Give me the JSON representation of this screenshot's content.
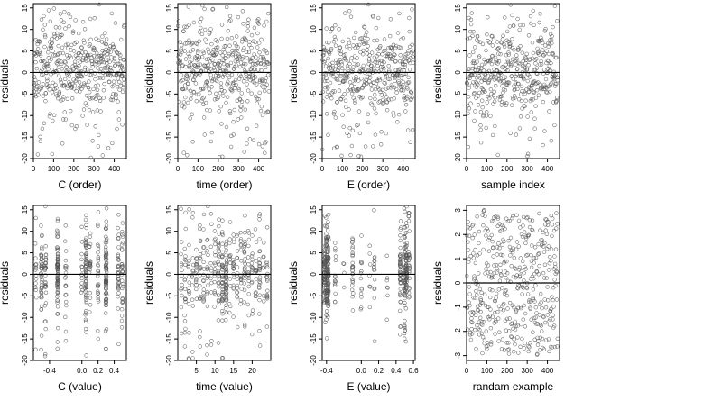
{
  "figure": {
    "background": "#ffffff",
    "point_color": "#555555",
    "reference_line_color": "#000000"
  },
  "chart_data": [
    {
      "type": "scatter",
      "xlabel": "C (order)",
      "ylabel": "residuals",
      "xlim": [
        0,
        460
      ],
      "ylim": [
        -20,
        16
      ],
      "xticks": [
        0,
        100,
        200,
        300,
        400
      ],
      "yticks": [
        -20,
        -15,
        -10,
        -5,
        0,
        5,
        10,
        15
      ],
      "hline": 0,
      "x_kind": "index",
      "spread": "normal",
      "extremes": true,
      "seed": 11,
      "n_points": 450
    },
    {
      "type": "scatter",
      "xlabel": "time (order)",
      "ylabel": "residuals",
      "xlim": [
        0,
        460
      ],
      "ylim": [
        -20,
        16
      ],
      "xticks": [
        0,
        100,
        200,
        300,
        400
      ],
      "yticks": [
        -20,
        -15,
        -10,
        -5,
        0,
        5,
        10,
        15
      ],
      "hline": 0,
      "x_kind": "index",
      "spread": "normal",
      "extremes": true,
      "seed": 23,
      "n_points": 450
    },
    {
      "type": "scatter",
      "xlabel": "E (order)",
      "ylabel": "residuals",
      "xlim": [
        0,
        460
      ],
      "ylim": [
        -20,
        16
      ],
      "xticks": [
        0,
        100,
        200,
        300,
        400
      ],
      "yticks": [
        -20,
        -15,
        -10,
        -5,
        0,
        5,
        10,
        15
      ],
      "hline": 0,
      "x_kind": "index",
      "spread": "normal",
      "extremes": true,
      "seed": 37,
      "n_points": 450
    },
    {
      "type": "scatter",
      "xlabel": "sample index",
      "ylabel": "residuals",
      "xlim": [
        0,
        460
      ],
      "ylim": [
        -20,
        16
      ],
      "xticks": [
        0,
        100,
        200,
        300,
        400
      ],
      "yticks": [
        -20,
        -15,
        -10,
        -5,
        0,
        5,
        10,
        15
      ],
      "hline": 0,
      "x_kind": "index",
      "spread": "normal",
      "extremes": true,
      "seed": 41,
      "n_points": 450
    },
    {
      "type": "scatter",
      "xlabel": "C (value)",
      "ylabel": "residuals",
      "xlim": [
        -0.6,
        0.55
      ],
      "ylim": [
        -20,
        16
      ],
      "xticks": [
        -0.4,
        0.0,
        0.2,
        0.4
      ],
      "xtick_labels": [
        "-0.4",
        "0.0",
        "0.2",
        "0.4"
      ],
      "yticks": [
        -20,
        -15,
        -10,
        -5,
        0,
        5,
        10,
        15
      ],
      "hline": 0,
      "x_kind": "levels",
      "x_levels": [
        -0.57,
        -0.5,
        -0.45,
        -0.3,
        -0.2,
        0.0,
        0.05,
        0.1,
        0.2,
        0.3,
        0.45,
        0.5
      ],
      "level_weights": [
        1,
        2,
        2,
        5,
        1,
        1,
        3,
        1,
        2,
        5,
        3,
        2
      ],
      "spread": "normal",
      "extremes": true,
      "seed": 53,
      "n_points": 450
    },
    {
      "type": "scatter",
      "xlabel": "time (value)",
      "ylabel": "residuals",
      "xlim": [
        0,
        25
      ],
      "ylim": [
        -20,
        16
      ],
      "xticks": [
        5,
        10,
        15,
        20
      ],
      "yticks": [
        -20,
        -15,
        -10,
        -5,
        0,
        5,
        10,
        15
      ],
      "hline": 0,
      "x_kind": "levels",
      "x_levels": [
        1,
        2,
        3,
        4,
        5,
        6,
        7,
        8,
        9,
        10,
        11,
        12,
        13,
        14,
        15,
        16,
        17,
        18,
        19,
        20,
        21,
        22,
        23,
        24
      ],
      "level_weights": [
        1,
        1,
        1,
        1,
        1,
        1,
        1,
        1,
        1,
        1,
        2,
        3,
        2,
        1,
        1,
        1,
        1,
        1,
        1,
        1,
        1,
        1,
        1,
        1
      ],
      "spread": "normal",
      "extremes": true,
      "seed": 67,
      "n_points": 450
    },
    {
      "type": "scatter",
      "xlabel": "E (value)",
      "ylabel": "residuals",
      "xlim": [
        -0.45,
        0.62
      ],
      "ylim": [
        -20,
        16
      ],
      "xticks": [
        -0.4,
        0.0,
        0.2,
        0.4,
        0.6
      ],
      "xtick_labels": [
        "-0.4",
        "0.0",
        "0.2",
        "0.4",
        "0.6"
      ],
      "yticks": [
        -20,
        -15,
        -10,
        -5,
        0,
        5,
        10,
        15
      ],
      "hline": 0,
      "x_kind": "levels",
      "x_levels": [
        -0.42,
        -0.4,
        -0.38,
        -0.3,
        -0.2,
        -0.1,
        0.0,
        0.1,
        0.15,
        0.3,
        0.45,
        0.5,
        0.52,
        0.55
      ],
      "level_weights": [
        4,
        6,
        4,
        1,
        1,
        2,
        1,
        1,
        1,
        1,
        4,
        6,
        4,
        2
      ],
      "spread": "normal",
      "extremes": true,
      "seed": 79,
      "n_points": 450
    },
    {
      "type": "scatter",
      "xlabel": "randam example",
      "ylabel": "residuals",
      "xlim": [
        0,
        460
      ],
      "ylim": [
        -3.2,
        3.2
      ],
      "xticks": [
        0,
        100,
        200,
        300,
        400
      ],
      "yticks": [
        -3,
        -2,
        -1,
        0,
        1,
        2,
        3
      ],
      "hline": 0,
      "x_kind": "index",
      "spread": "uniform",
      "extremes": false,
      "seed": 97,
      "n_points": 450
    }
  ]
}
